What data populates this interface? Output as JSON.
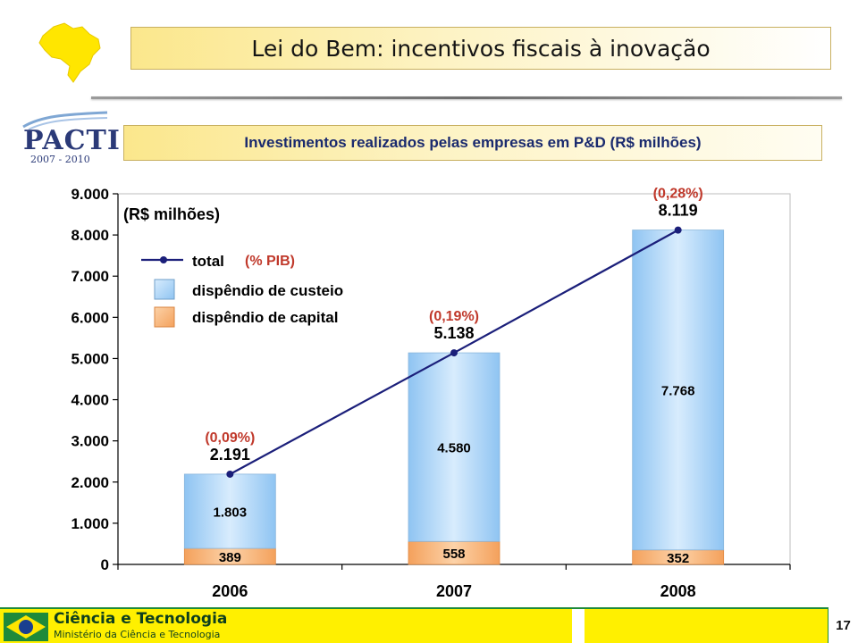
{
  "header": {
    "title": "Lei do Bem: incentivos fiscais à inovação",
    "subtitle": "Investimentos realizados pelas empresas em P&D (R$ milhões)"
  },
  "pacti_logo": {
    "word": "PACTI",
    "years": "2007 - 2010"
  },
  "colors": {
    "custeio": "#a8d2f6",
    "capital": "#f9b47a",
    "line": "#1b1f7a",
    "pib_label": "#c0392b",
    "accent_yellow": "#fff000"
  },
  "chart_data": {
    "type": "bar",
    "stacked": true,
    "unit_label": "(R$ milhões)",
    "categories": [
      "2006",
      "2007",
      "2008"
    ],
    "series": [
      {
        "name": "dispêndio de custeio",
        "values": [
          1803,
          4580,
          7768
        ],
        "labels": [
          "1.803",
          "4.580",
          "7.768"
        ]
      },
      {
        "name": "dispêndio de capital",
        "values": [
          389,
          558,
          352
        ],
        "labels": [
          "389",
          "558",
          "352"
        ]
      }
    ],
    "line": {
      "name": "total",
      "values": [
        2191,
        5138,
        8119
      ],
      "labels": [
        "2.191",
        "5.138",
        "8.119"
      ],
      "pib_labels": [
        "(0,09%)",
        "(0,19%)",
        "(0,28%)"
      ],
      "pib_legend": "(% PIB)"
    },
    "ylim": [
      0,
      9000
    ],
    "yticks": [
      0,
      1000,
      2000,
      3000,
      4000,
      5000,
      6000,
      7000,
      8000,
      9000
    ],
    "ytick_labels": [
      "0",
      "1.000",
      "2.000",
      "3.000",
      "4.000",
      "5.000",
      "6.000",
      "7.000",
      "8.000",
      "9.000"
    ],
    "legend_position": "top-left"
  },
  "footer": {
    "brand_title": "Ciência e Tecnologia",
    "brand_subtitle": "Ministério da Ciência e Tecnologia",
    "page_number": "17"
  }
}
